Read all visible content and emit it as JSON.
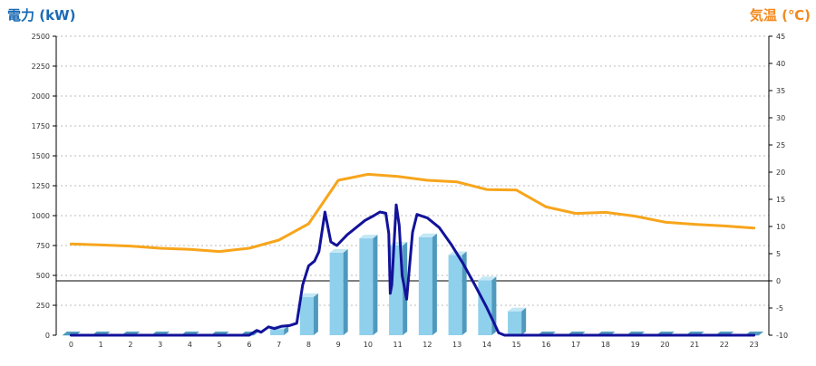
{
  "chart_data": {
    "type": "bar+line",
    "categories": [
      "0",
      "1",
      "2",
      "3",
      "4",
      "5",
      "6",
      "7",
      "8",
      "9",
      "10",
      "11",
      "12",
      "13",
      "14",
      "15",
      "16",
      "17",
      "18",
      "19",
      "20",
      "21",
      "22",
      "23"
    ],
    "left_axis": {
      "label": "電力 (kW)",
      "ylim": [
        0,
        2500
      ],
      "ticks": [
        0,
        250,
        500,
        750,
        1000,
        1250,
        1500,
        1750,
        2000,
        2250,
        2500
      ]
    },
    "right_axis": {
      "label": "気温 (℃)",
      "ylim": [
        -10,
        45
      ],
      "ticks": [
        -10,
        -5,
        0,
        5,
        10,
        15,
        20,
        25,
        30,
        35,
        40,
        45
      ]
    },
    "bars": {
      "axis": "left",
      "values": [
        0,
        0,
        0,
        0,
        0,
        0,
        0,
        50,
        320,
        690,
        810,
        750,
        820,
        670,
        460,
        200,
        0,
        0,
        0,
        0,
        0,
        0,
        0,
        0
      ]
    },
    "power_line": {
      "axis": "left",
      "points": [
        [
          0,
          0
        ],
        [
          1,
          0
        ],
        [
          2,
          0
        ],
        [
          3,
          0
        ],
        [
          4,
          0
        ],
        [
          5,
          0
        ],
        [
          6,
          0
        ],
        [
          6.25,
          40
        ],
        [
          6.4,
          25
        ],
        [
          6.65,
          70
        ],
        [
          6.85,
          55
        ],
        [
          7.1,
          75
        ],
        [
          7.35,
          80
        ],
        [
          7.6,
          100
        ],
        [
          7.8,
          420
        ],
        [
          8.0,
          580
        ],
        [
          8.2,
          620
        ],
        [
          8.35,
          700
        ],
        [
          8.55,
          1030
        ],
        [
          8.75,
          780
        ],
        [
          8.95,
          750
        ],
        [
          9.3,
          840
        ],
        [
          9.6,
          900
        ],
        [
          9.9,
          960
        ],
        [
          10.2,
          1000
        ],
        [
          10.4,
          1030
        ],
        [
          10.6,
          1020
        ],
        [
          10.7,
          850
        ],
        [
          10.75,
          350
        ],
        [
          10.8,
          420
        ],
        [
          10.95,
          1090
        ],
        [
          11.05,
          920
        ],
        [
          11.15,
          500
        ],
        [
          11.3,
          300
        ],
        [
          11.5,
          860
        ],
        [
          11.65,
          1010
        ],
        [
          12.0,
          980
        ],
        [
          12.4,
          900
        ],
        [
          12.8,
          760
        ],
        [
          13.2,
          600
        ],
        [
          13.6,
          420
        ],
        [
          14.0,
          230
        ],
        [
          14.4,
          20
        ],
        [
          14.6,
          0
        ],
        [
          15.5,
          0
        ],
        [
          16,
          0
        ],
        [
          17,
          0
        ],
        [
          18,
          0
        ],
        [
          19,
          0
        ],
        [
          20,
          0
        ],
        [
          21,
          0
        ],
        [
          22,
          0
        ],
        [
          23,
          0
        ]
      ]
    },
    "temperature_line": {
      "axis": "right",
      "points": [
        [
          0,
          6.8
        ],
        [
          1,
          6.6
        ],
        [
          2,
          6.4
        ],
        [
          3,
          6.0
        ],
        [
          4,
          5.8
        ],
        [
          5,
          5.4
        ],
        [
          6,
          6.0
        ],
        [
          7,
          7.5
        ],
        [
          8,
          10.5
        ],
        [
          9,
          18.5
        ],
        [
          10,
          19.6
        ],
        [
          11,
          19.2
        ],
        [
          12,
          18.5
        ],
        [
          13,
          18.2
        ],
        [
          14,
          16.8
        ],
        [
          15,
          16.7
        ],
        [
          16,
          13.6
        ],
        [
          17,
          12.4
        ],
        [
          18,
          12.6
        ],
        [
          19,
          11.9
        ],
        [
          20,
          10.8
        ],
        [
          21,
          10.4
        ],
        [
          22,
          10.1
        ],
        [
          23,
          9.7
        ]
      ]
    },
    "grid": "horizontal-dashed",
    "colors": {
      "left_axis_title": "#1a6ab4",
      "right_axis_title": "#f28a1e",
      "bar_front": "#8fd0ec",
      "bar_side": "#4f99bd",
      "bar_top": "#c4e7f6",
      "power_line": "#12129a",
      "temperature_line": "#f7a51c",
      "zero_temp_line": "#000000",
      "grid": "#bbbbbb"
    }
  }
}
